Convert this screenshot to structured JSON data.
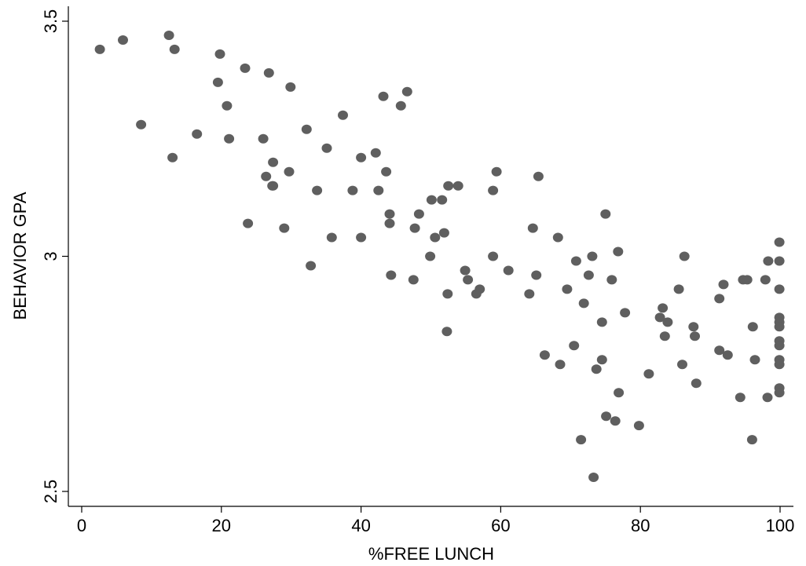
{
  "chart_data": {
    "type": "scatter",
    "xlabel": "%FREE LUNCH",
    "ylabel": "BEHAVIOR GPA",
    "xlim": [
      0,
      100
    ],
    "ylim": [
      2.5,
      3.5
    ],
    "xticks": [
      "0",
      "20",
      "40",
      "60",
      "80",
      "100"
    ],
    "yticks": [
      "2.5",
      "3",
      "3.5"
    ],
    "grid": false,
    "marker_color": "#5f5f5f",
    "points": [
      [
        2.6,
        3.44
      ],
      [
        5.9,
        3.46
      ],
      [
        12.5,
        3.47
      ],
      [
        13.3,
        3.44
      ],
      [
        8.5,
        3.28
      ],
      [
        13.0,
        3.21
      ],
      [
        16.5,
        3.26
      ],
      [
        19.8,
        3.43
      ],
      [
        19.5,
        3.37
      ],
      [
        20.8,
        3.32
      ],
      [
        21.1,
        3.25
      ],
      [
        23.4,
        3.4
      ],
      [
        26.8,
        3.39
      ],
      [
        29.9,
        3.36
      ],
      [
        23.8,
        3.07
      ],
      [
        26.0,
        3.25
      ],
      [
        26.4,
        3.17
      ],
      [
        27.4,
        3.2
      ],
      [
        27.4,
        3.15
      ],
      [
        27.3,
        3.15
      ],
      [
        29.7,
        3.18
      ],
      [
        29.0,
        3.06
      ],
      [
        32.2,
        3.27
      ],
      [
        33.7,
        3.14
      ],
      [
        32.8,
        2.98
      ],
      [
        35.1,
        3.23
      ],
      [
        35.8,
        3.04
      ],
      [
        37.4,
        3.3
      ],
      [
        38.8,
        3.14
      ],
      [
        40.0,
        3.21
      ],
      [
        40.0,
        3.04
      ],
      [
        42.1,
        3.22
      ],
      [
        42.5,
        3.14
      ],
      [
        43.2,
        3.34
      ],
      [
        43.6,
        3.18
      ],
      [
        44.1,
        3.09
      ],
      [
        44.1,
        3.07
      ],
      [
        44.3,
        2.96
      ],
      [
        45.7,
        3.32
      ],
      [
        46.6,
        3.35
      ],
      [
        47.5,
        2.95
      ],
      [
        47.7,
        3.06
      ],
      [
        48.3,
        3.09
      ],
      [
        49.9,
        3.0
      ],
      [
        50.1,
        3.12
      ],
      [
        50.6,
        3.04
      ],
      [
        51.6,
        3.12
      ],
      [
        51.9,
        3.05
      ],
      [
        52.5,
        3.15
      ],
      [
        52.4,
        2.92
      ],
      [
        52.3,
        2.84
      ],
      [
        53.9,
        3.15
      ],
      [
        54.9,
        2.97
      ],
      [
        55.3,
        2.95
      ],
      [
        56.5,
        2.92
      ],
      [
        57.0,
        2.93
      ],
      [
        58.9,
        3.14
      ],
      [
        59.4,
        3.18
      ],
      [
        58.9,
        3.0
      ],
      [
        61.1,
        2.97
      ],
      [
        64.1,
        2.92
      ],
      [
        64.6,
        3.06
      ],
      [
        65.1,
        2.96
      ],
      [
        65.4,
        3.17
      ],
      [
        66.3,
        2.79
      ],
      [
        68.2,
        3.04
      ],
      [
        68.5,
        2.77
      ],
      [
        69.5,
        2.93
      ],
      [
        70.5,
        2.81
      ],
      [
        70.8,
        2.99
      ],
      [
        71.5,
        2.61
      ],
      [
        71.9,
        2.9
      ],
      [
        72.6,
        2.96
      ],
      [
        73.1,
        3.0
      ],
      [
        73.3,
        2.53
      ],
      [
        73.7,
        2.76
      ],
      [
        74.5,
        2.86
      ],
      [
        74.5,
        2.78
      ],
      [
        75.0,
        3.09
      ],
      [
        75.1,
        2.66
      ],
      [
        75.9,
        2.95
      ],
      [
        76.4,
        2.65
      ],
      [
        76.8,
        3.01
      ],
      [
        76.9,
        2.71
      ],
      [
        77.8,
        2.88
      ],
      [
        79.8,
        2.64
      ],
      [
        81.2,
        2.75
      ],
      [
        82.8,
        2.87
      ],
      [
        83.2,
        2.89
      ],
      [
        83.5,
        2.83
      ],
      [
        83.9,
        2.86
      ],
      [
        85.5,
        2.93
      ],
      [
        86.0,
        2.77
      ],
      [
        86.3,
        3.0
      ],
      [
        87.6,
        2.85
      ],
      [
        87.8,
        2.83
      ],
      [
        88.0,
        2.73
      ],
      [
        91.3,
        2.8
      ],
      [
        91.3,
        2.91
      ],
      [
        91.9,
        2.94
      ],
      [
        92.5,
        2.79
      ],
      [
        94.3,
        2.7
      ],
      [
        94.7,
        2.95
      ],
      [
        95.3,
        2.95
      ],
      [
        96.1,
        2.85
      ],
      [
        96.0,
        2.61
      ],
      [
        96.4,
        2.78
      ],
      [
        97.9,
        2.95
      ],
      [
        98.2,
        2.7
      ],
      [
        98.3,
        2.99
      ],
      [
        99.9,
        3.03
      ],
      [
        99.9,
        2.99
      ],
      [
        99.9,
        2.93
      ],
      [
        99.9,
        2.87
      ],
      [
        99.9,
        2.86
      ],
      [
        99.9,
        2.85
      ],
      [
        99.9,
        2.82
      ],
      [
        99.9,
        2.81
      ],
      [
        99.9,
        2.78
      ],
      [
        99.9,
        2.77
      ],
      [
        99.9,
        2.72
      ],
      [
        99.9,
        2.71
      ]
    ]
  }
}
